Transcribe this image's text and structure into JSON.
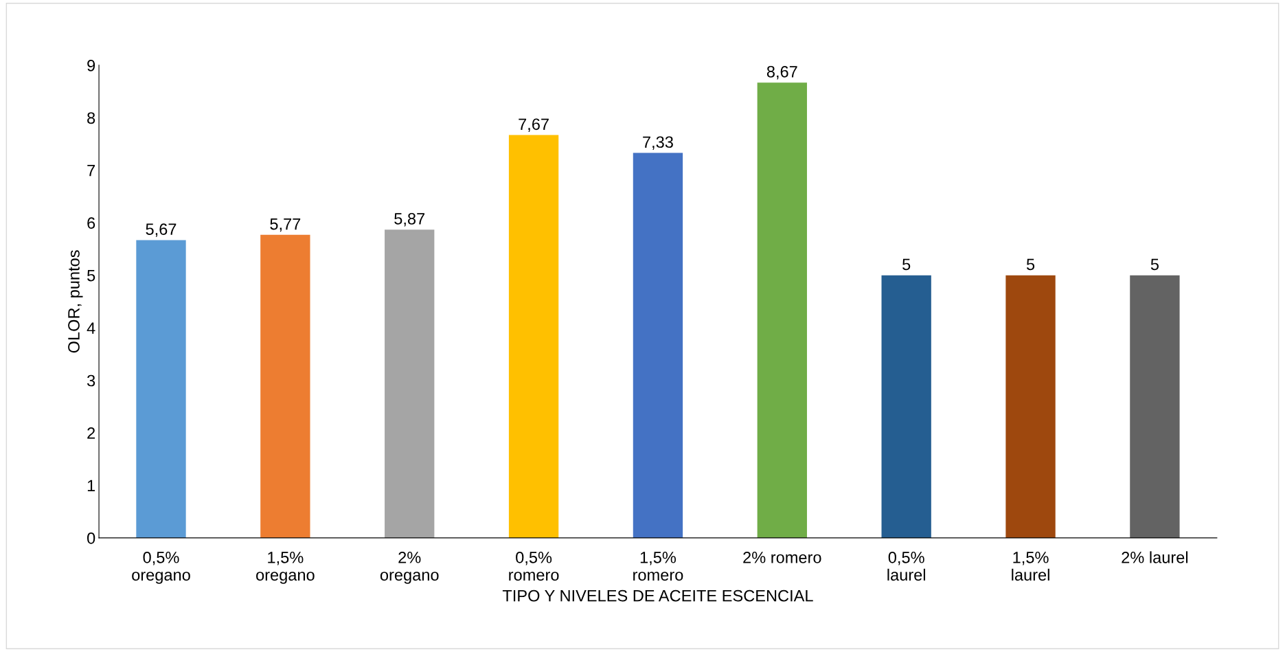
{
  "chart_data": {
    "type": "bar",
    "xlabel": "TIPO Y NIVELES DE ACEITE ESCENCIAL",
    "ylabel": "OLOR, puntos",
    "categories": [
      "0,5%\noregano",
      "1,5%\noregano",
      "2%\noregano",
      "0,5%\nromero",
      "1,5%\nromero",
      "2% romero",
      "0,5%\nlaurel",
      "1,5%\nlaurel",
      "2% laurel"
    ],
    "values": [
      5.67,
      5.77,
      5.87,
      7.67,
      7.33,
      8.67,
      5,
      5,
      5
    ],
    "value_labels": [
      "5,67",
      "5,77",
      "5,87",
      "7,67",
      "7,33",
      "8,67",
      "5",
      "5",
      "5"
    ],
    "colors": [
      "#5b9bd5",
      "#ed7d31",
      "#a5a5a5",
      "#ffc000",
      "#4472c4",
      "#70ad47",
      "#255e91",
      "#9e480e",
      "#636363"
    ],
    "ylim": [
      0,
      9
    ],
    "yticks": [
      0,
      1,
      2,
      3,
      4,
      5,
      6,
      7,
      8,
      9
    ],
    "grid": false,
    "legend": false
  }
}
